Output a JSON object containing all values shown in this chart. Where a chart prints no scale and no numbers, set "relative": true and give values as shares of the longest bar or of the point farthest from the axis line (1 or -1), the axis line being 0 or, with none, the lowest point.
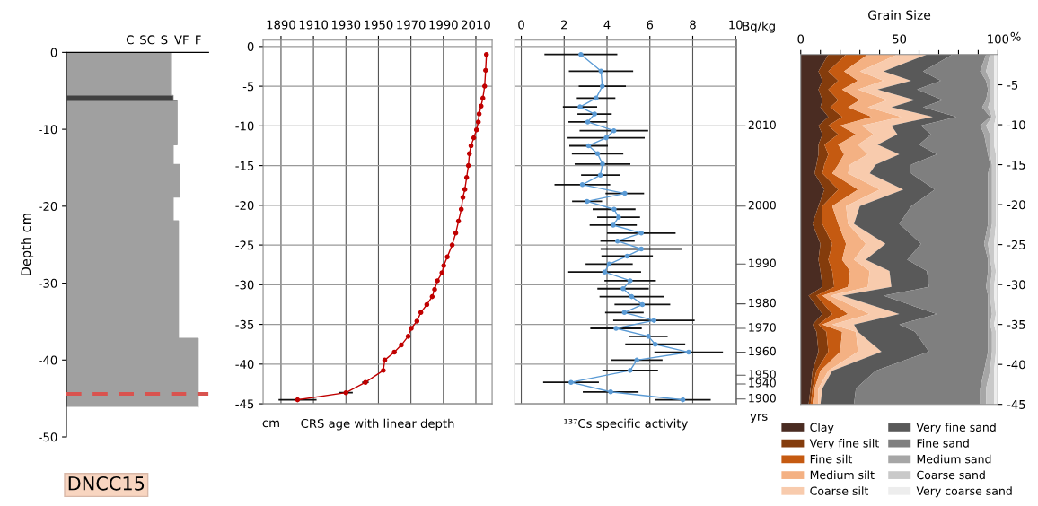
{
  "chart_data": [
    {
      "type": "area",
      "orientation": "horizontal",
      "relative": true,
      "ylabel": "Depth cm",
      "annotations": [
        "DNCC15",
        "C",
        "SC",
        "S",
        "VF",
        "F"
      ],
      "ylim": [
        -50,
        0
      ],
      "yticks": [
        0,
        -10,
        -20,
        -30,
        -40,
        -50
      ],
      "series": [
        {
          "type": "line",
          "color": "#a0a0a0",
          "x": [
            0,
            -5.6,
            -5.6,
            -6.3,
            -6.3,
            -12.0,
            -12.0,
            -14.6,
            -14.6,
            -18.8,
            -18.8,
            -21.9,
            -21.9,
            -37.2,
            -37.2,
            -46.1
          ],
          "values": [
            0.79,
            0.79,
            0.81,
            0.81,
            0.84,
            0.84,
            0.81,
            0.81,
            0.86,
            0.86,
            0.81,
            0.81,
            0.85,
            0.85,
            1,
            1
          ]
        }
      ],
      "bands": [
        {
          "axis": "y",
          "from": -6.3,
          "to": -5.6,
          "color": "#404040"
        }
      ],
      "ref_lines": [
        {
          "axis": "y",
          "value": -44.4,
          "color": "#d9534f",
          "line_style": "dashed"
        }
      ]
    },
    {
      "type": "line",
      "xlabel": "CRS age with linear depth",
      "annotations": [
        "cm"
      ],
      "xlim": [
        1879,
        2020
      ],
      "xticks": [
        1890,
        1910,
        1930,
        1950,
        1970,
        1990,
        2010
      ],
      "ylim": [
        -45,
        0.8
      ],
      "yticks": [
        0,
        -5,
        -10,
        -15,
        -20,
        -25,
        -30,
        -35,
        -40,
        -45
      ],
      "grid": true,
      "marker": "circle",
      "line_style": "solid",
      "series": [
        {
          "color": "#c00000",
          "x": [
            2016.5,
            2016,
            2015.4,
            2014.3,
            2013.2,
            2012,
            2011.5,
            2010.4,
            2008.7,
            2007,
            2006,
            2005.4,
            2004.3,
            2003.2,
            2002,
            2001,
            1999.3,
            1997.6,
            1995.4,
            1992.4,
            1990.2,
            1989.1,
            1986.3,
            1984.6,
            1983.1,
            1979.8,
            1976.1,
            1973.7,
            1970.2,
            1968.3,
            1964.1,
            1959.8,
            1953.9,
            1953.0,
            1942.0,
            1930.0,
            1900.2
          ],
          "values": [
            -1,
            -3,
            -5,
            -6.5,
            -7.5,
            -8.5,
            -9.5,
            -10.5,
            -11.5,
            -12.5,
            -13.5,
            -15,
            -16.5,
            -18,
            -19,
            -20.5,
            -22,
            -23.5,
            -25,
            -26.5,
            -27.6,
            -28.5,
            -29.5,
            -30.6,
            -31.5,
            -32.5,
            -33.5,
            -34.6,
            -35.5,
            -36.5,
            -37.6,
            -38.5,
            -39.5,
            -40.8,
            -42.3,
            -43.6,
            -44.5
          ],
          "xerrors": [
            null,
            null,
            null,
            null,
            null,
            null,
            null,
            null,
            null,
            null,
            null,
            null,
            null,
            null,
            null,
            null,
            null,
            null,
            null,
            null,
            null,
            null,
            null,
            null,
            null,
            null,
            null,
            null,
            null,
            null,
            null,
            null,
            null,
            null,
            2,
            4.2,
            11.7
          ]
        }
      ]
    },
    {
      "type": "line",
      "xlabel": "¹³⁷Cs specific activity",
      "annotations": [
        "Bq/kg",
        "yrs",
        "2010",
        "2000",
        "1990",
        "1980",
        "1970",
        "1960",
        "1950",
        "1940",
        "1900"
      ],
      "xlim": [
        -0.3,
        10.05
      ],
      "xticks": [
        0,
        2,
        4,
        6,
        8,
        10
      ],
      "ylim": [
        -45,
        0.8
      ],
      "yticks": [
        0,
        -5,
        -10,
        -15,
        -20,
        -25,
        -30,
        -35,
        -40,
        -45
      ],
      "tick_labels": "x",
      "grid": true,
      "marker": "circle",
      "line_style": "solid",
      "series": [
        {
          "color": "#5b9bd5",
          "x": [
            2.78,
            3.72,
            3.78,
            3.49,
            2.74,
            3.42,
            3.1,
            4.32,
            3.96,
            3.14,
            3.56,
            3.79,
            3.69,
            2.85,
            4.83,
            3.07,
            4.33,
            4.54,
            4.29,
            5.6,
            4.49,
            5.6,
            4.94,
            4.1,
            3.89,
            5.08,
            4.75,
            5.15,
            5.65,
            4.81,
            6.19,
            4.42,
            5.93,
            6.25,
            7.81,
            5.39,
            5.08,
            2.32,
            4.17,
            7.54
          ],
          "values": [
            -1.0,
            -3.1,
            -5.0,
            -6.5,
            -7.6,
            -8.5,
            -9.5,
            -10.6,
            -11.5,
            -12.5,
            -13.5,
            -14.8,
            -16.2,
            -17.4,
            -18.5,
            -19.5,
            -20.5,
            -21.5,
            -22.5,
            -23.5,
            -24.5,
            -25.5,
            -26.4,
            -27.4,
            -28.4,
            -29.5,
            -30.5,
            -31.5,
            -32.5,
            -33.5,
            -34.5,
            -35.5,
            -36.5,
            -37.5,
            -38.5,
            -39.5,
            -40.8,
            -42.3,
            -43.5,
            -44.5
          ],
          "xerrors": [
            1.7,
            1.5,
            1.1,
            0.9,
            0.8,
            0.8,
            0.9,
            1.6,
            1.8,
            0.9,
            1.2,
            1.3,
            0.9,
            1.3,
            0.9,
            0.7,
            1.0,
            1.0,
            1.1,
            1.6,
            0.8,
            1.9,
            1.2,
            1.1,
            1.7,
            1.2,
            1.2,
            1.5,
            1.3,
            0.9,
            1.9,
            1.2,
            0.9,
            1.4,
            1.6,
            1.2,
            1.3,
            1.3,
            1.3,
            1.3
          ]
        }
      ]
    },
    {
      "type": "area",
      "orientation": "horizontal",
      "stacked": true,
      "title": "Grain Size",
      "annotations": [
        "%"
      ],
      "xlim": [
        0,
        100
      ],
      "xticks": [
        0,
        {
          "value": 10,
          "label": null
        },
        {
          "value": 20,
          "label": null
        },
        {
          "value": 30,
          "label": null
        },
        {
          "value": 40,
          "label": null
        },
        50,
        {
          "value": 60,
          "label": null
        },
        {
          "value": 70,
          "label": null
        },
        {
          "value": 80,
          "label": null
        },
        {
          "value": 90,
          "label": null
        },
        100
      ],
      "ylim": [
        -45,
        -1.2
      ],
      "yticks": [
        -5,
        -10,
        -15,
        -20,
        -25,
        -30,
        -35,
        -40,
        -45
      ],
      "grid": false,
      "legend": "bottom",
      "x": [
        -1.2,
        -3.3,
        -4.5,
        -5.6,
        -6.9,
        -7.8,
        -9.0,
        -10.1,
        -11.2,
        -12.5,
        -13.7,
        -15.0,
        -16.1,
        -18.1,
        -20.2,
        -22.4,
        -24.9,
        -26.9,
        -28.3,
        -30.3,
        -31.4,
        -33.7,
        -35.0,
        -35.9,
        -38.4,
        -40.8,
        -43.0,
        -45.0
      ],
      "series": [
        {
          "name": "Clay",
          "color": "#4a2c22",
          "values": [
            14,
            9,
            11,
            9,
            11,
            10,
            14,
            9,
            11,
            9,
            9,
            8,
            7,
            12,
            9,
            6,
            10,
            9,
            10,
            11,
            4,
            11,
            6,
            8,
            9,
            6,
            5,
            4
          ]
        },
        {
          "name": "Very fine silt",
          "color": "#843c0c",
          "values": [
            9,
            5,
            8,
            5,
            8,
            5,
            7,
            5,
            8,
            3,
            5,
            4,
            4,
            7,
            2,
            5,
            6,
            5,
            6,
            6,
            4,
            5,
            3,
            5,
            5,
            2,
            1,
            1
          ]
        },
        {
          "name": "Fine silt",
          "color": "#c55a11",
          "values": [
            11,
            8,
            10,
            7,
            11,
            9,
            15,
            6,
            9,
            7,
            8,
            7,
            5,
            10,
            5,
            8,
            7,
            7,
            9,
            7,
            3,
            8,
            2,
            8,
            6,
            2,
            1,
            1
          ]
        },
        {
          "name": "Medium silt",
          "color": "#f4b183",
          "values": [
            15,
            8,
            13,
            8,
            14,
            10,
            15,
            11,
            9,
            10,
            12,
            6,
            8,
            11,
            7,
            5,
            10,
            6,
            10,
            10,
            4,
            11,
            5,
            7,
            9,
            4,
            2,
            3
          ]
        },
        {
          "name": "Coarse silt",
          "color": "#f8cbad",
          "values": [
            15,
            12,
            14,
            10,
            14,
            12,
            16,
            15,
            12,
            10,
            16,
            13,
            11,
            12,
            7,
            3,
            10,
            6,
            10,
            12,
            6,
            15,
            11,
            1,
            12,
            2,
            2,
            1
          ]
        },
        {
          "name": "Very fine sand",
          "color": "#595959",
          "values": [
            13,
            20,
            15,
            20,
            14,
            16,
            12,
            15,
            17,
            21,
            19,
            18,
            21,
            16,
            26,
            23,
            18,
            21,
            19,
            19,
            21,
            19,
            23,
            29,
            24,
            22,
            17,
            17
          ]
        },
        {
          "name": "Fine sand",
          "color": "#7f7f7f",
          "values": [
            17,
            29,
            23,
            36,
            22,
            30,
            17,
            30,
            27,
            34,
            26,
            40,
            39,
            27,
            39,
            45,
            32,
            41,
            31,
            29,
            53,
            26,
            45,
            37,
            30,
            55,
            63,
            64
          ]
        },
        {
          "name": "Medium sand",
          "color": "#a6a6a6",
          "values": [
            2,
            3,
            2,
            1,
            2,
            3,
            1,
            3,
            3,
            2,
            1,
            1,
            2,
            2,
            2,
            2,
            2,
            1,
            2,
            2,
            1,
            2,
            1,
            2,
            2,
            3,
            3,
            3
          ]
        },
        {
          "name": "Coarse sand",
          "color": "#c9c9c9",
          "values": [
            2,
            4,
            2,
            2,
            2,
            3,
            2,
            4,
            2,
            2,
            3,
            2,
            2,
            2,
            2,
            2,
            3,
            2,
            2,
            2,
            2,
            2,
            2,
            2,
            2,
            2,
            4,
            4
          ]
        },
        {
          "name": "Very coarse sand",
          "color": "#ededed",
          "values": [
            2,
            2,
            2,
            2,
            2,
            2,
            1,
            2,
            2,
            2,
            1,
            1,
            1,
            1,
            1,
            1,
            2,
            2,
            1,
            2,
            2,
            1,
            2,
            1,
            1,
            2,
            2,
            2
          ]
        }
      ]
    }
  ]
}
